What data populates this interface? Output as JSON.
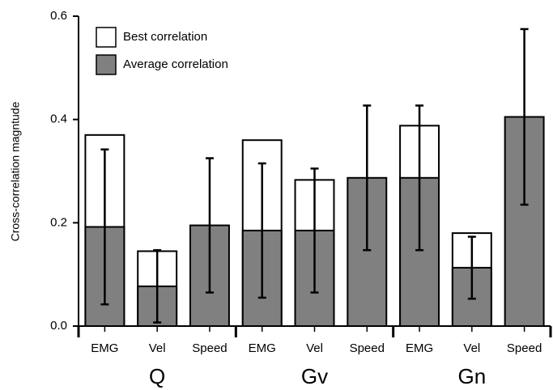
{
  "chart_data": {
    "type": "bar",
    "y_label": "Cross-correlation magntude",
    "categories": [
      "EMG",
      "Vel",
      "Speed",
      "EMG",
      "Vel",
      "Speed",
      "EMG",
      "Vel",
      "Speed"
    ],
    "groups": [
      "Q",
      "Gv",
      "Gn"
    ],
    "series": [
      {
        "name": "Best correlation",
        "color": "#ffffff",
        "values": [
          0.37,
          0.145,
          null,
          0.36,
          0.283,
          null,
          0.388,
          0.18,
          null
        ]
      },
      {
        "name": "Average correlation",
        "color": "#808080",
        "values": [
          0.192,
          0.077,
          0.195,
          0.185,
          0.185,
          0.287,
          0.287,
          0.113,
          0.405
        ],
        "errors": [
          0.15,
          0.07,
          0.13,
          0.13,
          0.12,
          0.14,
          0.14,
          0.06,
          0.17
        ]
      }
    ],
    "ylim": [
      0,
      0.6
    ],
    "yticks": [
      {
        "value": 0,
        "label": "0.0"
      },
      0.2,
      0.4,
      0.6
    ],
    "legend": "upper-left"
  }
}
